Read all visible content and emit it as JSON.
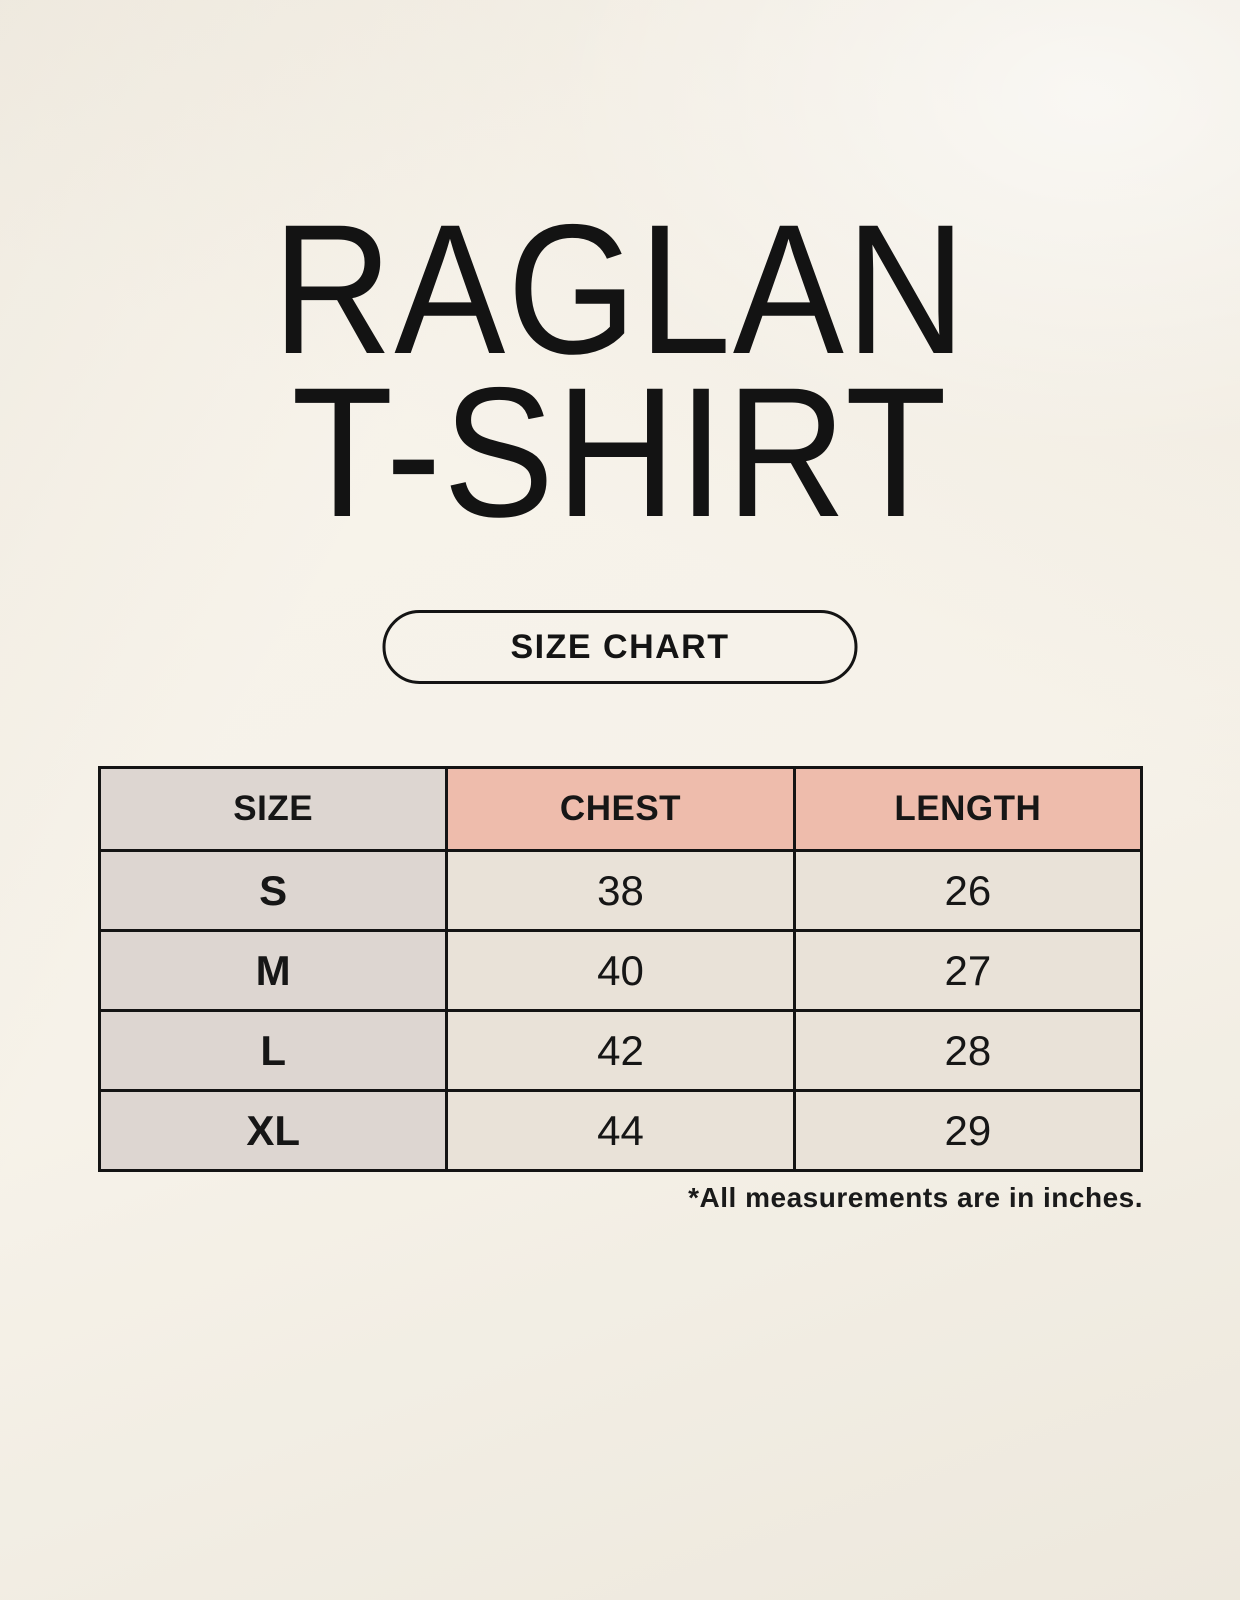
{
  "title": {
    "line1": "RAGLAN",
    "line2": "T-SHIRT"
  },
  "button": {
    "label": "SIZE CHART"
  },
  "table": {
    "columns": [
      "SIZE",
      "CHEST",
      "LENGTH"
    ],
    "rows": [
      {
        "size": "S",
        "chest": "38",
        "length": "26"
      },
      {
        "size": "M",
        "chest": "40",
        "length": "27"
      },
      {
        "size": "L",
        "chest": "42",
        "length": "28"
      },
      {
        "size": "XL",
        "chest": "44",
        "length": "29"
      }
    ]
  },
  "footnote": "*All measurements are in inches.",
  "colors": {
    "background_cream": "#F6F2E9",
    "header_pink": "#EEBCAC",
    "size_column_gray": "#DDD6D1",
    "cell_beige": "#E9E2D8",
    "border_black": "#141414",
    "text_black": "#161616"
  }
}
